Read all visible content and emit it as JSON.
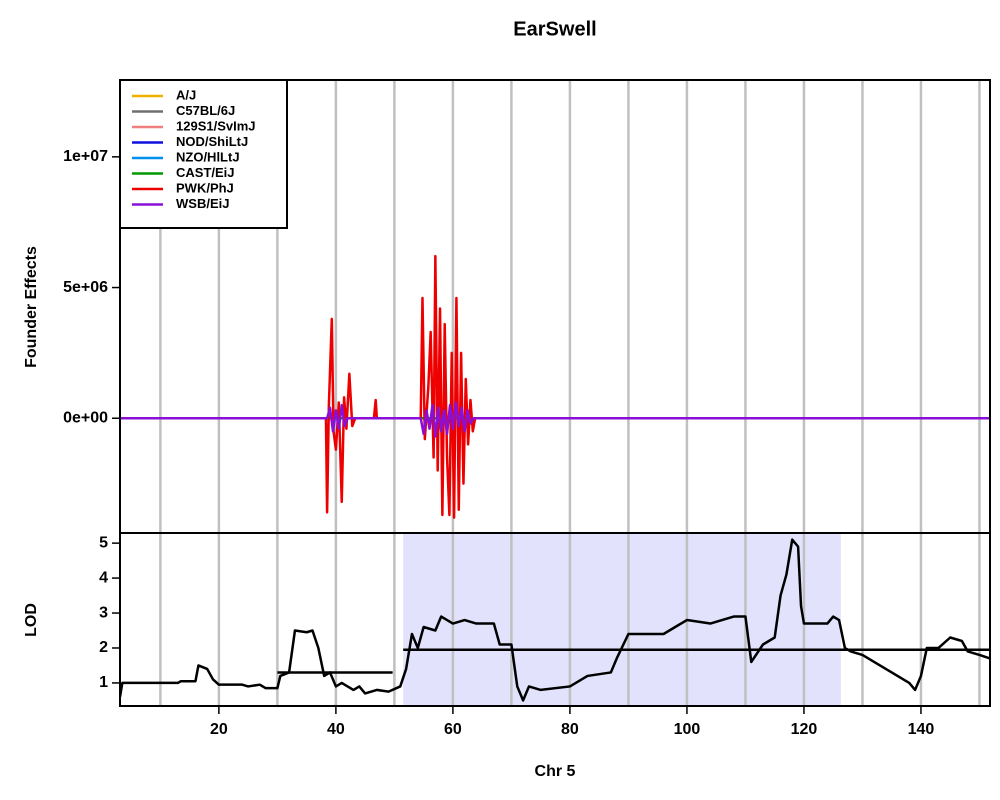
{
  "chart_data": [
    {
      "type": "line",
      "title": "EarSwell",
      "ylabel": "Founder Effects",
      "xlim": [
        3.1,
        151.8
      ],
      "ylim": [
        -4390000,
        12940000
      ],
      "xgrid": [
        10,
        20,
        30,
        40,
        50,
        60,
        70,
        80,
        90,
        100,
        110,
        120,
        130,
        140,
        150
      ],
      "yticks": [
        {
          "value": 0,
          "label": "0e+00"
        },
        {
          "value": 5000000,
          "label": "5e+06"
        },
        {
          "value": 10000000,
          "label": "1e+07"
        }
      ],
      "legend": "top-left",
      "series": [
        {
          "name": "A/J",
          "color": "#f0b000",
          "x": [
            3.1,
            151.8
          ],
          "values": [
            0,
            0
          ]
        },
        {
          "name": "C57BL/6J",
          "color": "#707070",
          "x": [
            3.1,
            151.8
          ],
          "values": [
            0,
            0
          ]
        },
        {
          "name": "129S1/SvImJ",
          "color": "#f08080",
          "x": [
            3.1,
            151.8
          ],
          "values": [
            0,
            0
          ]
        },
        {
          "name": "NOD/ShiLtJ",
          "color": "#1010e0",
          "x": [
            3.1,
            151.8
          ],
          "values": [
            0,
            0
          ]
        },
        {
          "name": "NZO/HlLtJ",
          "color": "#0090f0",
          "x": [
            3.1,
            151.8
          ],
          "values": [
            0,
            0
          ]
        },
        {
          "name": "CAST/EiJ",
          "color": "#009a00",
          "x": [
            3.1,
            151.8
          ],
          "values": [
            0,
            0
          ]
        },
        {
          "name": "PWK/PhJ",
          "color": "#ee0000",
          "x": [
            3.1,
            38.3,
            38.5,
            38.8,
            39.3,
            39.6,
            40.0,
            40.5,
            41.0,
            41.4,
            41.8,
            42.3,
            42.8,
            43.3,
            46.5,
            46.8,
            47.0,
            54.5,
            54.8,
            55.2,
            55.8,
            56.2,
            56.7,
            57.0,
            57.4,
            57.8,
            58.2,
            58.6,
            59.0,
            59.4,
            59.8,
            60.2,
            60.6,
            61.0,
            61.4,
            61.8,
            62.2,
            62.6,
            63.0,
            63.4,
            63.8,
            151.8
          ],
          "values": [
            0,
            0,
            -3600000,
            500000,
            3800000,
            -500000,
            -1200000,
            600000,
            -3200000,
            800000,
            -400000,
            1700000,
            -300000,
            0,
            0,
            700000,
            0,
            0,
            4600000,
            -800000,
            1200000,
            3300000,
            -1500000,
            6200000,
            -2000000,
            4200000,
            -3700000,
            3600000,
            -1500000,
            -3700000,
            2500000,
            -3800000,
            4600000,
            -3500000,
            2500000,
            -2500000,
            1500000,
            -1000000,
            700000,
            -500000,
            0,
            0
          ]
        },
        {
          "name": "WSB/EiJ",
          "color": "#8a10d8",
          "x": [
            3.1,
            38.5,
            39,
            39.5,
            40,
            40.5,
            41,
            41.5,
            42,
            54.5,
            55,
            55.5,
            56,
            56.5,
            57,
            57.5,
            58,
            58.5,
            59,
            59.5,
            60,
            60.5,
            61,
            61.5,
            62,
            62.5,
            63,
            63.5,
            151.8
          ],
          "values": [
            0,
            0,
            400000,
            -500000,
            300000,
            -400000,
            500000,
            -300000,
            0,
            0,
            -600000,
            300000,
            -400000,
            500000,
            -700000,
            400000,
            -500000,
            300000,
            -600000,
            500000,
            -400000,
            600000,
            -300000,
            400000,
            -500000,
            300000,
            -200000,
            0,
            0
          ]
        }
      ]
    },
    {
      "type": "line",
      "xlabel": "Chr 5",
      "ylabel": "LOD",
      "xlim": [
        3.1,
        151.8
      ],
      "ylim": [
        0.34,
        5.29
      ],
      "xticks": [
        20,
        40,
        60,
        80,
        100,
        120,
        140
      ],
      "xgrid": [
        10,
        20,
        30,
        40,
        50,
        60,
        70,
        80,
        90,
        100,
        110,
        120,
        130,
        140,
        150
      ],
      "yticks": [
        1,
        2,
        3,
        4,
        5
      ],
      "highlight": [
        51.5,
        126.3
      ],
      "highlight_color": "#e2e2fc",
      "segments": [
        {
          "x": [
            30,
            49.7
          ],
          "value": 1.3
        },
        {
          "x": [
            51.5,
            151.8
          ],
          "value": 1.95
        }
      ],
      "series": [
        {
          "color": "#000000",
          "x": [
            3.1,
            3.5,
            13,
            13.5,
            16,
            16.5,
            18,
            19,
            20,
            24,
            25,
            27,
            28,
            30,
            30.5,
            32,
            33,
            35,
            36,
            37,
            38,
            39,
            40,
            41,
            43,
            44,
            45,
            47,
            49,
            51,
            52,
            53,
            54,
            55,
            57,
            58,
            60,
            62,
            64,
            67,
            68,
            70,
            71,
            72,
            73,
            75,
            80,
            83,
            87,
            88,
            90,
            96,
            98,
            100,
            104,
            108,
            110,
            111,
            113,
            115,
            116,
            117,
            118,
            119,
            119.5,
            120,
            124,
            125,
            126,
            127,
            128,
            130,
            133,
            135,
            138,
            139,
            140,
            141,
            143,
            145,
            147,
            148,
            150,
            151.8
          ],
          "values": [
            0.6,
            1.0,
            1.0,
            1.05,
            1.05,
            1.5,
            1.4,
            1.1,
            0.95,
            0.95,
            0.9,
            0.95,
            0.85,
            0.85,
            1.2,
            1.3,
            2.5,
            2.45,
            2.5,
            2.0,
            1.2,
            1.3,
            0.9,
            1.0,
            0.8,
            0.9,
            0.7,
            0.8,
            0.75,
            0.9,
            1.4,
            2.4,
            2.0,
            2.6,
            2.5,
            2.9,
            2.7,
            2.8,
            2.7,
            2.7,
            2.1,
            2.1,
            0.9,
            0.5,
            0.9,
            0.8,
            0.9,
            1.2,
            1.3,
            1.7,
            2.4,
            2.4,
            2.6,
            2.8,
            2.7,
            2.9,
            2.9,
            1.6,
            2.1,
            2.3,
            3.5,
            4.1,
            5.1,
            4.9,
            3.2,
            2.7,
            2.7,
            2.9,
            2.8,
            2.0,
            1.9,
            1.8,
            1.5,
            1.3,
            1.0,
            0.8,
            1.2,
            2.0,
            2.0,
            2.3,
            2.2,
            1.9,
            1.8,
            1.7
          ]
        }
      ]
    }
  ]
}
